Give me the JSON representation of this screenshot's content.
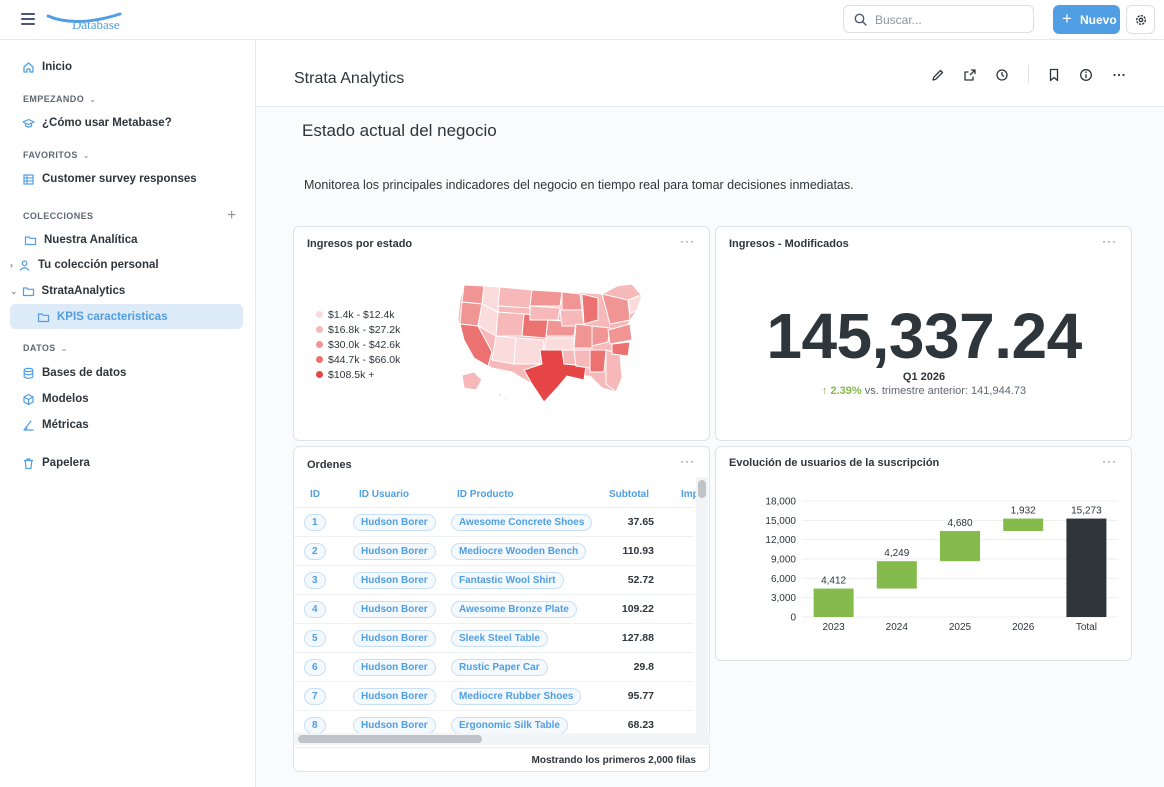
{
  "app": {
    "logo_text": "Database"
  },
  "topbar": {
    "search_placeholder": "Buscar...",
    "new_label": "Nuevo"
  },
  "sidebar": {
    "home": "Inicio",
    "getting_started_header": "EMPEZANDO",
    "how_to": "¿Cómo usar Metabase?",
    "favorites_header": "FAVORITOS",
    "favorite_item": "Customer survey responses",
    "collections_header": "COLECCIONES",
    "collections": [
      "Nuestra Analítica",
      "Tu colección personal",
      "StrataAnalytics",
      "KPIS caracteristicas"
    ],
    "data_header": "DATOS",
    "data_items": [
      "Bases de datos",
      "Modelos",
      "Métricas"
    ],
    "trash": "Papelera"
  },
  "dashboard": {
    "title": "Strata Analytics",
    "heading": "Estado actual del negocio",
    "description": "Monitorea los principales indicadores del negocio en tiempo real para tomar decisiones inmediatas."
  },
  "cards": {
    "map": {
      "title": "Ingresos por estado",
      "legend": [
        {
          "label": "$1.4k - $12.4k",
          "color": "#fbdcdc"
        },
        {
          "label": "$16.8k - $27.2k",
          "color": "#f6b8b8"
        },
        {
          "label": "$30.0k - $42.6k",
          "color": "#f19494"
        },
        {
          "label": "$44.7k - $66.0k",
          "color": "#ec7272"
        },
        {
          "label": "$108.5k +",
          "color": "#e54545"
        }
      ]
    },
    "kpi": {
      "title": "Ingresos - Modificados",
      "value": "145,337.24",
      "period": "Q1 2026",
      "change": "2.39%",
      "compare": "vs. trimestre anterior: 141,944.73"
    },
    "orders": {
      "title": "Ordenes",
      "columns": [
        "ID",
        "ID Usuario",
        "ID Producto",
        "Subtotal",
        "Imp"
      ],
      "rows": [
        {
          "id": "1",
          "user": "Hudson Borer",
          "product": "Awesome Concrete Shoes",
          "subtotal": "37.65"
        },
        {
          "id": "2",
          "user": "Hudson Borer",
          "product": "Mediocre Wooden Bench",
          "subtotal": "110.93"
        },
        {
          "id": "3",
          "user": "Hudson Borer",
          "product": "Fantastic Wool Shirt",
          "subtotal": "52.72"
        },
        {
          "id": "4",
          "user": "Hudson Borer",
          "product": "Awesome Bronze Plate",
          "subtotal": "109.22"
        },
        {
          "id": "5",
          "user": "Hudson Borer",
          "product": "Sleek Steel Table",
          "subtotal": "127.88"
        },
        {
          "id": "6",
          "user": "Hudson Borer",
          "product": "Rustic Paper Car",
          "subtotal": "29.8"
        },
        {
          "id": "7",
          "user": "Hudson Borer",
          "product": "Mediocre Rubber Shoes",
          "subtotal": "95.77"
        },
        {
          "id": "8",
          "user": "Hudson Borer",
          "product": "Ergonomic Silk Table",
          "subtotal": "68.23"
        }
      ],
      "footer": "Mostrando los primeros 2,000 filas"
    },
    "waterfall": {
      "title": "Evolución de usuarios de la suscripción"
    }
  },
  "chart_data": {
    "type": "bar",
    "subtype": "waterfall",
    "title": "Evolución de usuarios de la suscripción",
    "categories": [
      "2023",
      "2024",
      "2025",
      "2026",
      "Total"
    ],
    "values": [
      4412,
      4249,
      4680,
      1932,
      15273
    ],
    "labels": [
      "4,412",
      "4,249",
      "4,680",
      "1,932",
      "15,273"
    ],
    "yticks": [
      "18,000",
      "15,000",
      "12,000",
      "9,000",
      "6,000",
      "3,000",
      "0"
    ],
    "ylim": [
      0,
      18000
    ],
    "colors": {
      "increase": "#84bb4c",
      "total": "#2e353b"
    }
  }
}
